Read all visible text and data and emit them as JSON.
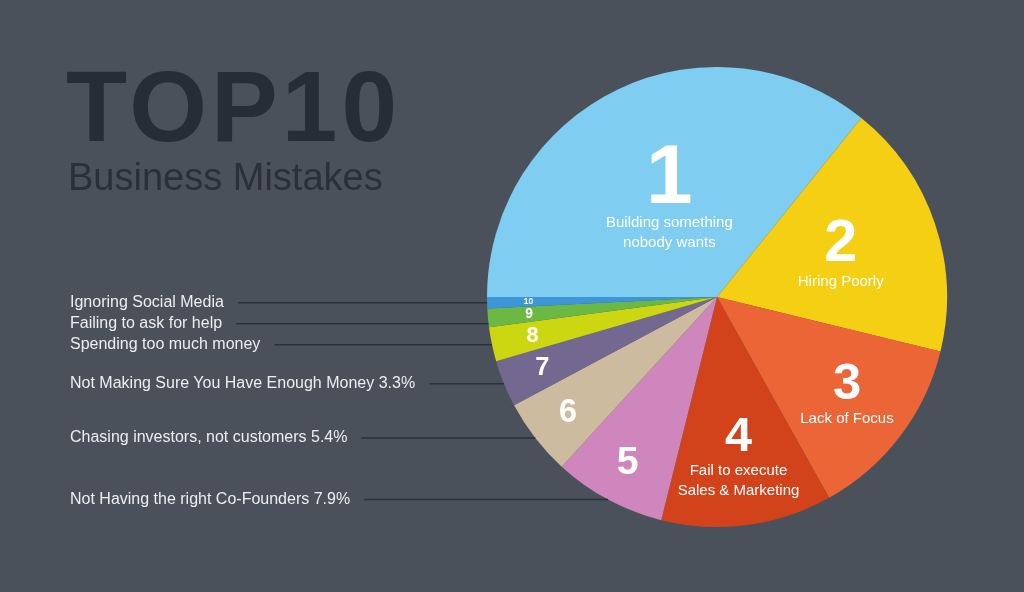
{
  "chart_data": {
    "type": "pie",
    "title": "TOP10",
    "subtitle": "Business Mistakes",
    "categories": [
      "Building something nobody wants",
      "Hiring Poorly",
      "Lack of Focus",
      "Fail to execute Sales & Marketing",
      "Not Having the right Co-Founders",
      "Chasing investors, not customers",
      "Not Making Sure You Have Enough Money",
      "Spending too much money",
      "Failing to ask for help",
      "Ignoring Social Media"
    ],
    "values": [
      35.8,
      18.0,
      13.1,
      12.0,
      7.9,
      5.4,
      3.3,
      2.4,
      1.3,
      0.8
    ],
    "colors": [
      "#7fcdf0",
      "#f4cf14",
      "#eb6536",
      "#d2431c",
      "#cf86bd",
      "#ccbb9f",
      "#736890",
      "#ccd712",
      "#6bb845",
      "#3d96d7"
    ],
    "value_labels": [
      null,
      null,
      null,
      null,
      "7.9%",
      "5.4%",
      "3.3%",
      null,
      null,
      null
    ],
    "annotations": [
      "1",
      "2",
      "3",
      "4",
      "5",
      "6",
      "7",
      "8",
      "9",
      "10"
    ]
  }
}
